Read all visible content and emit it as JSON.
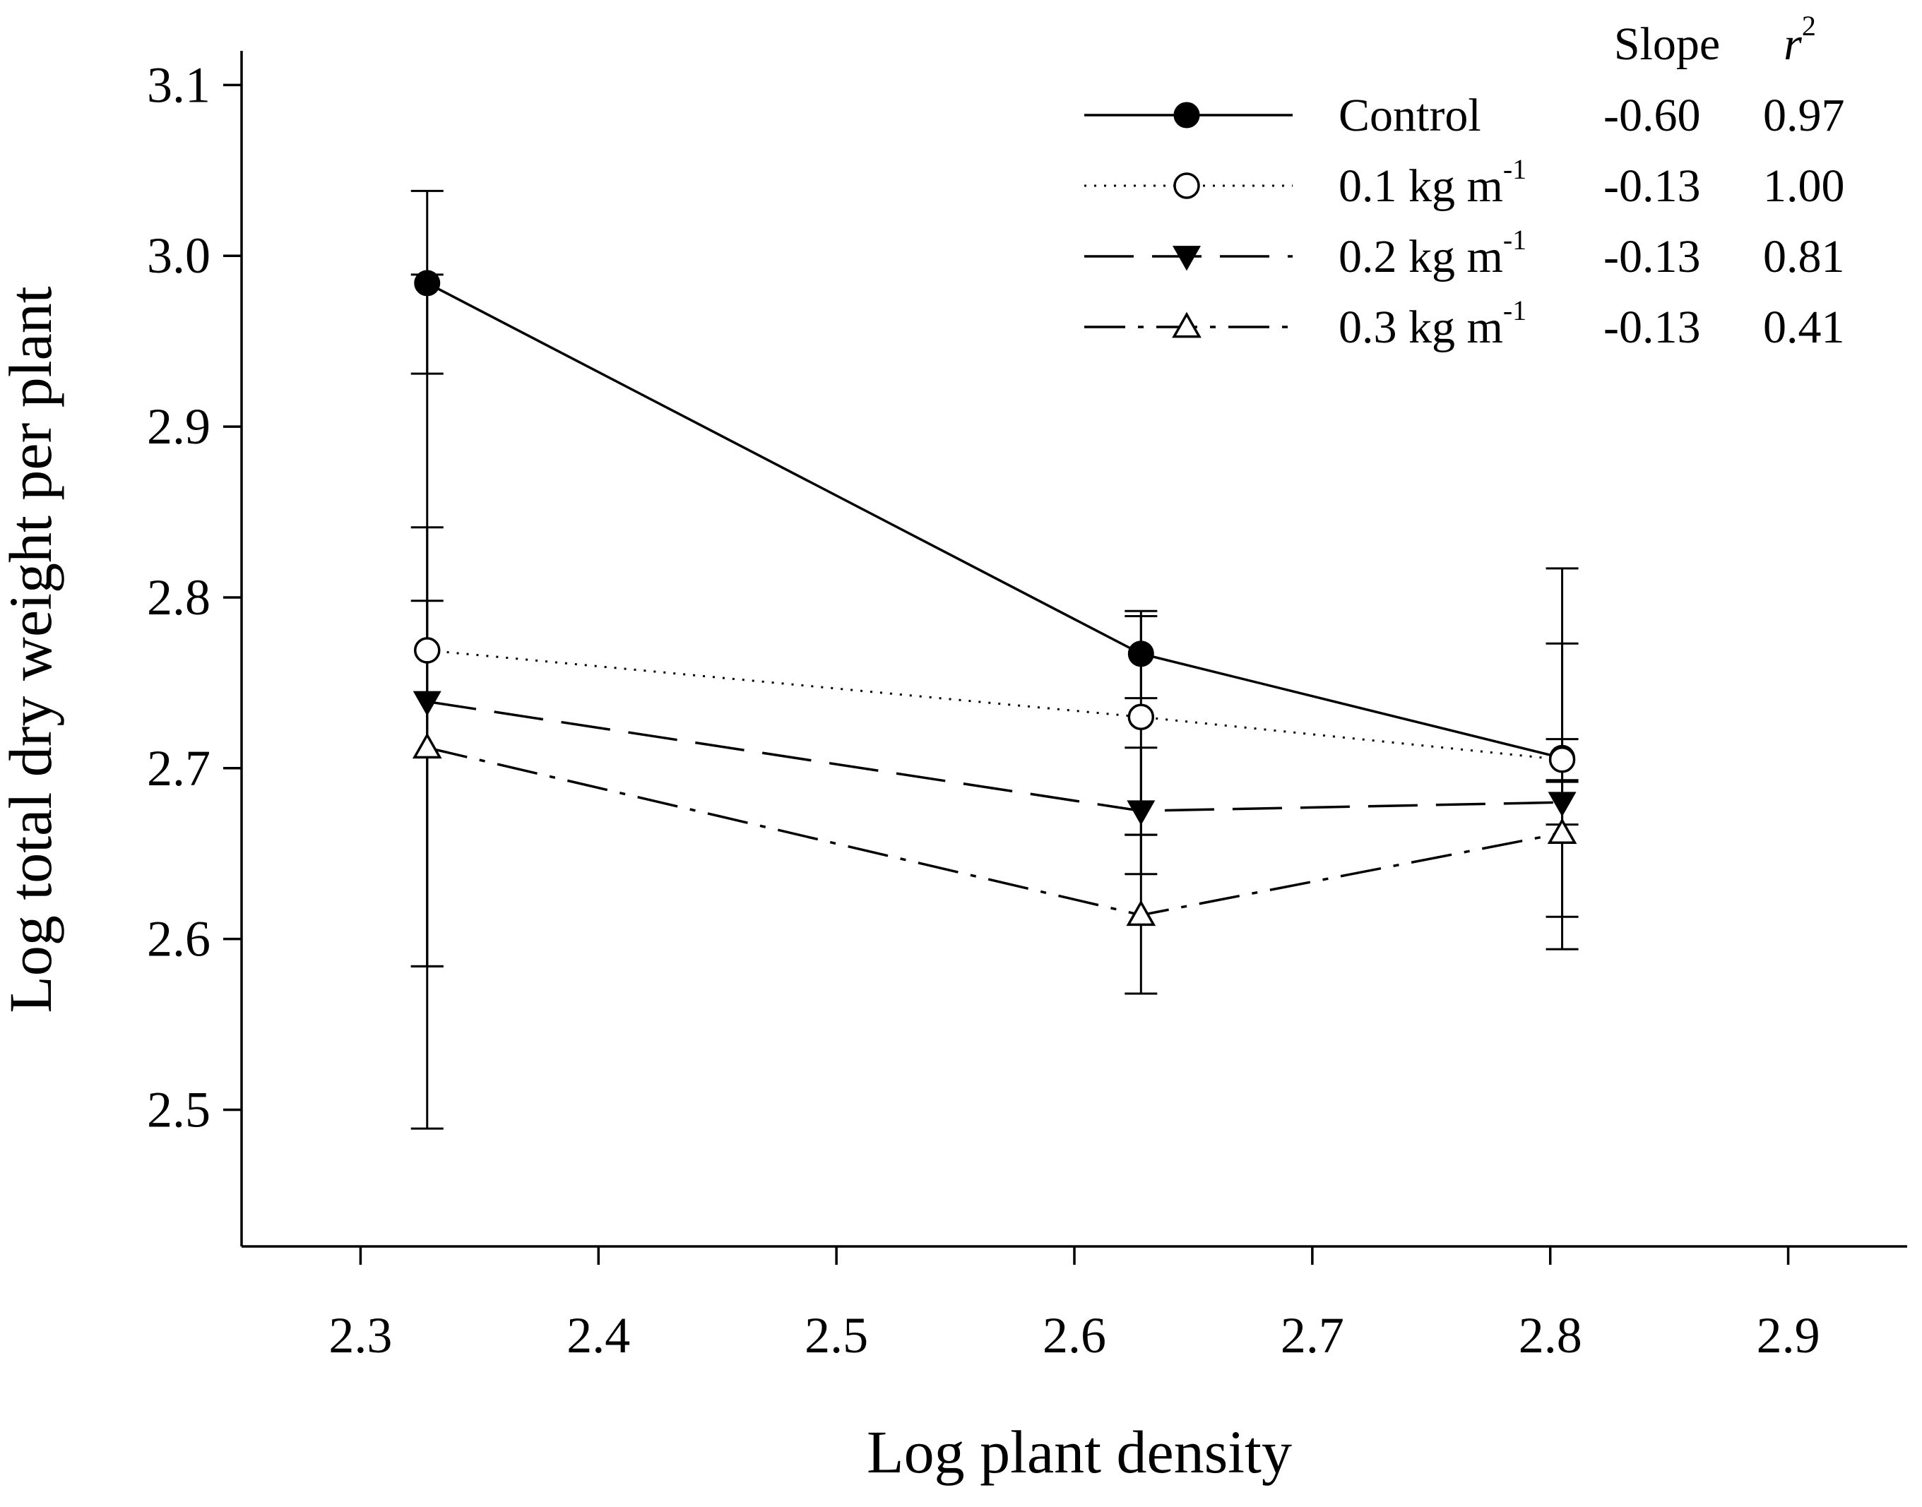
{
  "chart_data": {
    "type": "line",
    "title": "",
    "xlabel": "Log plant density",
    "ylabel": "Log total dry weight per plant",
    "xlim": [
      2.25,
      2.95
    ],
    "ylim": [
      2.42,
      3.12
    ],
    "xticks": [
      2.3,
      2.4,
      2.5,
      2.6,
      2.7,
      2.8,
      2.9
    ],
    "xtick_labels": [
      "2.3",
      "2.4",
      "2.5",
      "2.6",
      "2.7",
      "2.8",
      "2.9"
    ],
    "yticks": [
      2.5,
      2.6,
      2.7,
      2.8,
      2.9,
      3.0,
      3.1
    ],
    "ytick_labels": [
      "2.5",
      "2.6",
      "2.7",
      "2.8",
      "2.9",
      "3.0",
      "3.1"
    ],
    "grid": false,
    "legend": {
      "position": "top-right",
      "header_slope": "Slope",
      "header_r2_base": "r",
      "header_r2_sup": "2"
    },
    "x": [
      2.328,
      2.628,
      2.805
    ],
    "series": [
      {
        "key": "control",
        "name": "Control",
        "name_sup": "",
        "marker": "circle-filled",
        "line": "solid",
        "slope": "-0.60",
        "r2": "0.97",
        "values": [
          2.984,
          2.767,
          2.706
        ],
        "err_lo": [
          2.931,
          2.741,
          2.613
        ],
        "err_hi": [
          3.038,
          2.792,
          2.817
        ]
      },
      {
        "key": "dose01",
        "name": "0.1 kg m",
        "name_sup": "-1",
        "marker": "circle-open",
        "line": "dotted",
        "slope": "-0.13",
        "r2": "1.00",
        "values": [
          2.769,
          2.73,
          2.705
        ],
        "err_lo": [
          2.584,
          2.661,
          2.692
        ],
        "err_hi": [
          2.841,
          2.789,
          2.717
        ]
      },
      {
        "key": "dose02",
        "name": "0.2 kg m",
        "name_sup": "-1",
        "marker": "triangle-down-filled",
        "line": "dashed",
        "slope": "-0.13",
        "r2": "0.81",
        "values": [
          2.739,
          2.675,
          2.68
        ],
        "err_lo": [
          2.489,
          2.638,
          2.667
        ],
        "err_hi": [
          2.989,
          2.712,
          2.693
        ]
      },
      {
        "key": "dose03",
        "name": "0.3 kg m",
        "name_sup": "-1",
        "marker": "triangle-up-open",
        "line": "dashdot",
        "slope": "-0.13",
        "r2": "0.41",
        "values": [
          2.712,
          2.614,
          2.662
        ],
        "err_lo": [
          2.584,
          2.568,
          2.594
        ],
        "err_hi": [
          2.798,
          2.661,
          2.773
        ]
      }
    ]
  }
}
